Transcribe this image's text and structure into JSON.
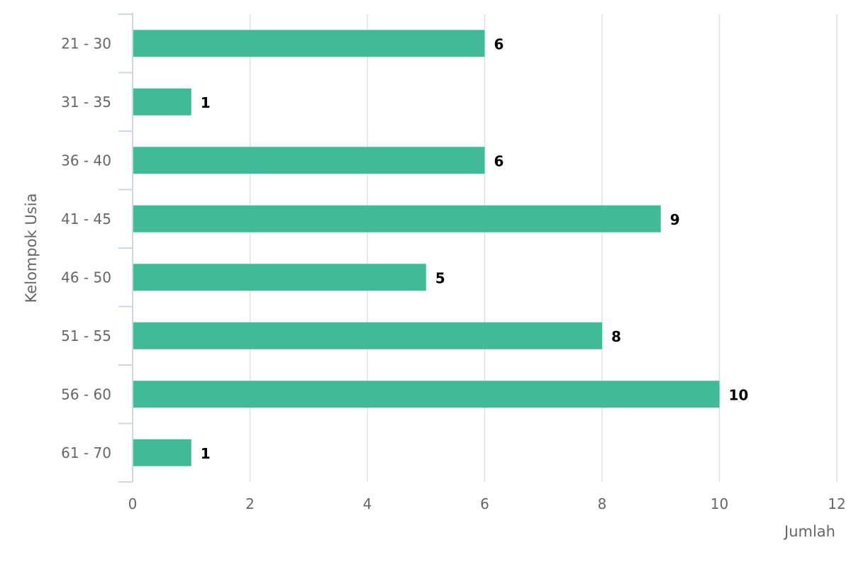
{
  "chart_data": {
    "type": "bar",
    "orientation": "horizontal",
    "categories": [
      "21 - 30",
      "31 - 35",
      "36 - 40",
      "41 - 45",
      "46 - 50",
      "51 - 55",
      "56 - 60",
      "61 - 70"
    ],
    "values": [
      6,
      1,
      6,
      9,
      5,
      8,
      10,
      1
    ],
    "title": "",
    "xlabel": "Jumlah",
    "ylabel": "Kelompok Usia",
    "xlim": [
      0,
      12
    ],
    "x_ticks": [
      0,
      2,
      4,
      6,
      8,
      10,
      12
    ],
    "grid": true,
    "data_labels": true,
    "legend": "none",
    "colors": {
      "bar": "#41bb97",
      "grid": "#e0e0e0",
      "axis": "#ccd6eb",
      "tick_text": "#666666",
      "data_label_text": "#000000"
    }
  }
}
